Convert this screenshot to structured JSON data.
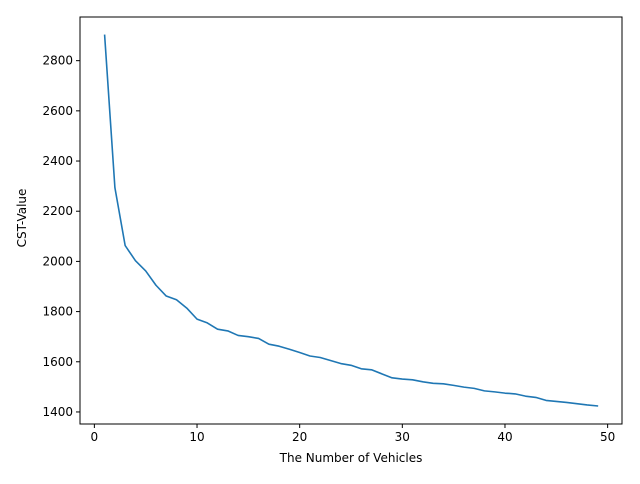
{
  "chart_data": {
    "type": "line",
    "title": "",
    "xlabel": "The Number of Vehicles",
    "ylabel": "CST-Value",
    "xlim": [
      -1.4,
      51.4
    ],
    "ylim": [
      1352,
      2974
    ],
    "xticks": [
      0,
      10,
      20,
      30,
      40,
      50
    ],
    "yticks": [
      1400,
      1600,
      1800,
      2000,
      2200,
      2400,
      2600,
      2800
    ],
    "grid": false,
    "series": [
      {
        "color": "#1f77b4",
        "x": [
          1,
          2,
          3,
          4,
          5,
          6,
          7,
          8,
          9,
          10,
          11,
          12,
          13,
          14,
          15,
          16,
          17,
          18,
          19,
          20,
          21,
          22,
          23,
          24,
          25,
          26,
          27,
          28,
          29,
          30,
          31,
          32,
          33,
          34,
          35,
          36,
          37,
          38,
          39,
          40,
          41,
          42,
          43,
          44,
          45,
          46,
          47,
          48,
          49
        ],
        "values": [
          2901,
          2294,
          2063,
          2003,
          1962,
          1905,
          1862,
          1847,
          1814,
          1770,
          1755,
          1730,
          1723,
          1705,
          1700,
          1693,
          1670,
          1662,
          1650,
          1637,
          1623,
          1617,
          1605,
          1593,
          1586,
          1572,
          1568,
          1552,
          1536,
          1531,
          1528,
          1520,
          1514,
          1512,
          1506,
          1499,
          1494,
          1484,
          1480,
          1475,
          1472,
          1463,
          1458,
          1446,
          1442,
          1438,
          1433,
          1428,
          1424
        ]
      }
    ]
  }
}
